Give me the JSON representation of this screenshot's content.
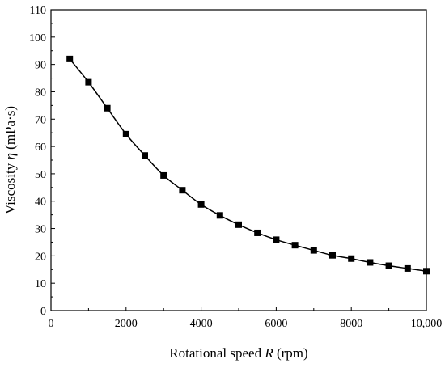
{
  "chart_data": {
    "type": "line",
    "title": "",
    "xlabel": {
      "prefix": "Rotational speed ",
      "symbol": "R",
      "suffix": " (rpm)"
    },
    "ylabel": {
      "prefix": "Viscosity ",
      "symbol": "η",
      "suffix": " (mPa·s)"
    },
    "xlim": [
      0,
      10000
    ],
    "ylim": [
      0,
      110
    ],
    "x_ticks": [
      0,
      2000,
      4000,
      6000,
      8000,
      10000
    ],
    "x_tick_labels": [
      "0",
      "2000",
      "4000",
      "6000",
      "8000",
      "10,000"
    ],
    "y_ticks": [
      0,
      10,
      20,
      30,
      40,
      50,
      60,
      70,
      80,
      90,
      100,
      110
    ],
    "y_tick_labels": [
      "0",
      "10",
      "20",
      "30",
      "40",
      "50",
      "60",
      "70",
      "80",
      "90",
      "100",
      "110"
    ],
    "grid": false,
    "legend": "none",
    "marker": "square",
    "series": [
      {
        "color": "#000000",
        "x": [
          500,
          1000,
          1500,
          2000,
          2500,
          3000,
          3500,
          4000,
          4500,
          5000,
          5500,
          6000,
          6500,
          7000,
          7500,
          8000,
          8500,
          9000,
          9500,
          10000
        ],
        "y": [
          92,
          83.5,
          74,
          64.5,
          56.7,
          49.4,
          44,
          38.8,
          34.8,
          31.4,
          28.4,
          25.9,
          23.9,
          22,
          20.2,
          19,
          17.6,
          16.4,
          15.4,
          14.4
        ]
      }
    ]
  }
}
